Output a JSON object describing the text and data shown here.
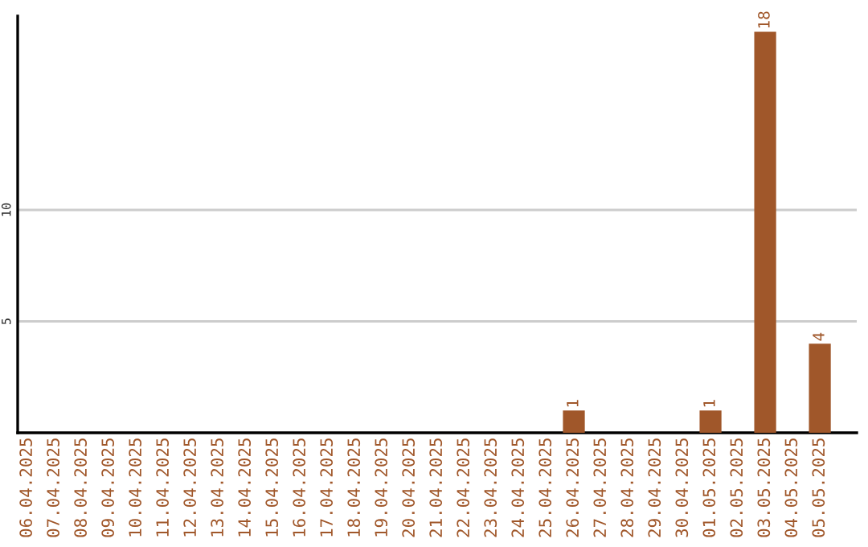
{
  "chart_data": {
    "type": "bar",
    "categories": [
      "06.04.2025",
      "07.04.2025",
      "08.04.2025",
      "09.04.2025",
      "10.04.2025",
      "11.04.2025",
      "12.04.2025",
      "13.04.2025",
      "14.04.2025",
      "15.04.2025",
      "16.04.2025",
      "17.04.2025",
      "18.04.2025",
      "19.04.2025",
      "20.04.2025",
      "21.04.2025",
      "22.04.2025",
      "23.04.2025",
      "24.04.2025",
      "25.04.2025",
      "26.04.2025",
      "27.04.2025",
      "28.04.2025",
      "29.04.2025",
      "30.04.2025",
      "01.05.2025",
      "02.05.2025",
      "03.05.2025",
      "04.05.2025",
      "05.05.2025"
    ],
    "values": [
      0,
      0,
      0,
      0,
      0,
      0,
      0,
      0,
      0,
      0,
      0,
      0,
      0,
      0,
      0,
      0,
      0,
      0,
      0,
      0,
      1,
      0,
      0,
      0,
      0,
      1,
      0,
      18,
      0,
      4
    ],
    "value_labels": [
      null,
      null,
      null,
      null,
      null,
      null,
      null,
      null,
      null,
      null,
      null,
      null,
      null,
      null,
      null,
      null,
      null,
      null,
      null,
      null,
      "1",
      null,
      null,
      null,
      null,
      "1",
      null,
      "18",
      null,
      "4"
    ],
    "color": "#a0572a",
    "ylim": [
      0,
      18.7
    ],
    "yticks": [
      5,
      10
    ],
    "grid": "y",
    "legend": false
  }
}
